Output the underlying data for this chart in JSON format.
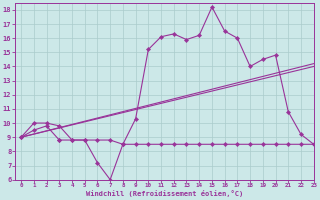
{
  "background_color": "#cce8e8",
  "grid_color": "#aacccc",
  "line_color": "#993399",
  "xlim": [
    -0.5,
    23
  ],
  "ylim": [
    6,
    18.5
  ],
  "yticks": [
    6,
    7,
    8,
    9,
    10,
    11,
    12,
    13,
    14,
    15,
    16,
    17,
    18
  ],
  "xticks": [
    0,
    1,
    2,
    3,
    4,
    5,
    6,
    7,
    8,
    9,
    10,
    11,
    12,
    13,
    14,
    15,
    16,
    17,
    18,
    19,
    20,
    21,
    22,
    23
  ],
  "xlabel": "Windchill (Refroidissement éolien,°C)",
  "curve1_x": [
    0,
    1,
    2,
    3,
    4,
    5,
    6,
    7,
    8,
    9,
    10,
    11,
    12,
    13,
    14,
    15,
    16,
    17,
    18,
    19,
    20,
    21,
    22,
    23
  ],
  "curve1_y": [
    9.0,
    10.0,
    10.0,
    9.8,
    8.8,
    8.8,
    7.2,
    6.0,
    8.5,
    10.3,
    15.2,
    16.1,
    16.3,
    15.9,
    16.2,
    18.2,
    16.5,
    16.0,
    14.0,
    14.5,
    14.8,
    10.8,
    9.2,
    8.5
  ],
  "curve2_x": [
    0,
    23
  ],
  "curve2_y": [
    9.0,
    14.0
  ],
  "curve3_x": [
    0,
    23
  ],
  "curve3_y": [
    9.0,
    14.2
  ],
  "curve4_x": [
    0,
    1,
    2,
    3,
    3,
    4,
    5,
    6,
    7,
    8,
    9,
    10,
    11,
    12,
    13,
    14,
    15,
    16,
    17,
    18,
    19,
    20,
    21,
    22,
    23
  ],
  "curve4_y": [
    9.0,
    9.5,
    9.8,
    8.8,
    8.8,
    8.8,
    8.8,
    8.8,
    8.8,
    8.5,
    8.5,
    8.5,
    8.5,
    8.5,
    8.5,
    8.5,
    8.5,
    8.5,
    8.5,
    8.5,
    8.5,
    8.5,
    8.5,
    8.5,
    8.5
  ]
}
